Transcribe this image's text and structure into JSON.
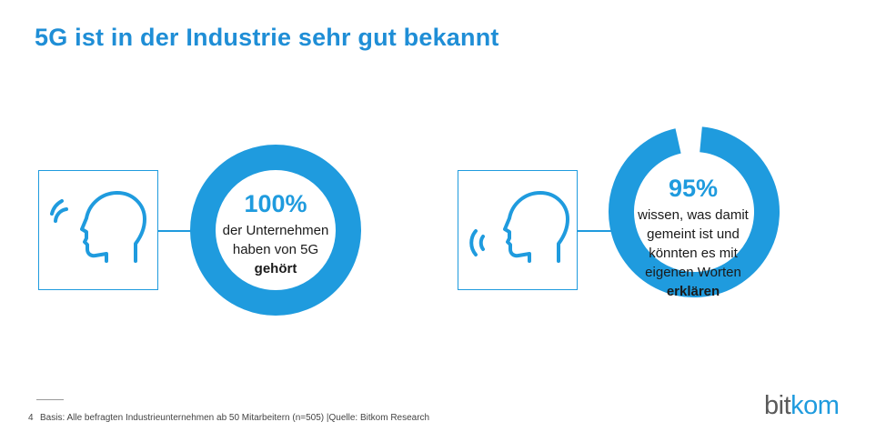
{
  "title": "5G ist in der Industrie sehr gut bekannt",
  "colors": {
    "accent": "#1f9bde",
    "ring_bg": "#ffffff",
    "text": "#1a1a1a"
  },
  "chart_data": [
    {
      "type": "pie",
      "values": [
        100
      ],
      "value_label": "100%",
      "lines": [
        "der Unternehmen",
        "haben von 5G"
      ],
      "bold_line": "gehört",
      "icon": "listening-head-icon"
    },
    {
      "type": "pie",
      "values": [
        95
      ],
      "value_label": "95%",
      "lines": [
        "wissen, was damit",
        "gemeint ist und",
        "könnten es mit",
        "eigenen Worten"
      ],
      "bold_line": "erklären",
      "icon": "speaking-head-icon"
    }
  ],
  "footer": {
    "page": "4",
    "source": "Basis: Alle befragten Industrieunternehmen  ab 50 Mitarbeitern (n=505)  |Quelle: Bitkom Research"
  },
  "logo": {
    "part1": "bit",
    "part2": "kom"
  }
}
